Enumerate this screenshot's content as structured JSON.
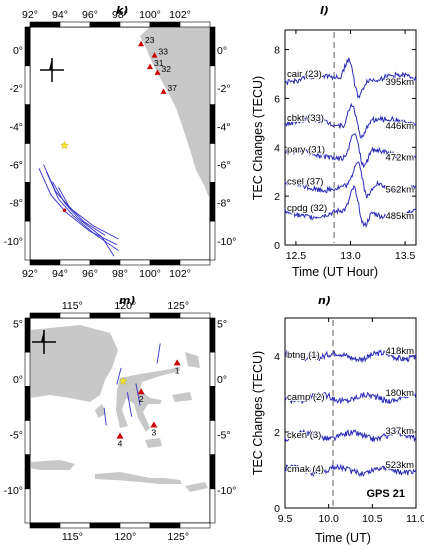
{
  "chart_data": [
    {
      "panel": "k)",
      "type": "map",
      "x_ticks": [
        "92°",
        "94°",
        "96°",
        "98°",
        "100°",
        "102°"
      ],
      "y_ticks": [
        "0°",
        "-2°",
        "-4°",
        "-6°",
        "-8°",
        "-10°"
      ],
      "stations": [
        {
          "label": "23",
          "lon": 99.4,
          "lat": 0.3
        },
        {
          "label": "33",
          "lon": 100.3,
          "lat": -0.3
        },
        {
          "label": "31",
          "lon": 100.0,
          "lat": -0.9
        },
        {
          "label": "32",
          "lon": 100.5,
          "lat": -1.2
        },
        {
          "label": "37",
          "lon": 100.9,
          "lat": -2.2
        }
      ],
      "epicenter": {
        "lon": 94.3,
        "lat": -5.0
      },
      "lon_range": [
        92,
        104
      ],
      "lat_range": [
        -11,
        1.2
      ]
    },
    {
      "panel": "l)",
      "type": "line",
      "xlabel": "Time (UT Hour)",
      "ylabel": "TEC Changes (TECU)",
      "xlim": [
        12.4,
        13.6
      ],
      "ylim": [
        0,
        8.8
      ],
      "x_ticks": [
        "12.5",
        "13.0",
        "13.5"
      ],
      "y_ticks": [
        "0",
        "2",
        "4",
        "6",
        "8"
      ],
      "event_time": 12.85,
      "series": [
        {
          "name": "cair (23)",
          "distance": "395km",
          "offset": 6.8,
          "arrival": 12.92
        },
        {
          "name": "cbkt (33)",
          "distance": "446km",
          "offset": 5.0,
          "arrival": 12.95
        },
        {
          "name": "pary (31)",
          "distance": "472km",
          "offset": 3.7,
          "arrival": 12.97
        },
        {
          "name": "csel (37)",
          "distance": "562km",
          "offset": 2.4,
          "arrival": 13.0
        },
        {
          "name": "cpdg (32)",
          "distance": "485km",
          "offset": 1.3,
          "arrival": 12.97
        }
      ]
    },
    {
      "panel": "m)",
      "type": "map",
      "x_ticks": [
        "115°",
        "120°",
        "125°"
      ],
      "y_ticks": [
        "5°",
        "0°",
        "-5°",
        "-10°"
      ],
      "stations": [
        {
          "label": "1",
          "lon": 124.9,
          "lat": 1.4
        },
        {
          "label": "2",
          "lon": 121.5,
          "lat": -1.2
        },
        {
          "label": "3",
          "lon": 122.7,
          "lat": -4.2
        },
        {
          "label": "4",
          "lon": 119.5,
          "lat": -5.2
        }
      ],
      "epicenter": {
        "lon": 119.8,
        "lat": -0.2
      },
      "lon_range": [
        111,
        128
      ],
      "lat_range": [
        -13,
        5.5
      ]
    },
    {
      "panel": "n)",
      "type": "line",
      "xlabel": "Time (UT)",
      "ylabel": "TEC Changes (TECU)",
      "xlim": [
        9.5,
        11.0
      ],
      "ylim": [
        0,
        5
      ],
      "x_ticks": [
        "9.5",
        "10.0",
        "10.5",
        "11.0"
      ],
      "y_ticks": [
        "0",
        "2",
        "4"
      ],
      "event_time": 10.05,
      "annotation": "GPS 21",
      "series": [
        {
          "name": "btng (1)",
          "distance": "418km",
          "offset": 4.0
        },
        {
          "name": "camp (2)",
          "distance": "180km",
          "offset": 2.9
        },
        {
          "name": "cken (3)",
          "distance": "337km",
          "offset": 1.9
        },
        {
          "name": "cmak (4)",
          "distance": "523km",
          "offset": 1.0
        }
      ]
    }
  ]
}
